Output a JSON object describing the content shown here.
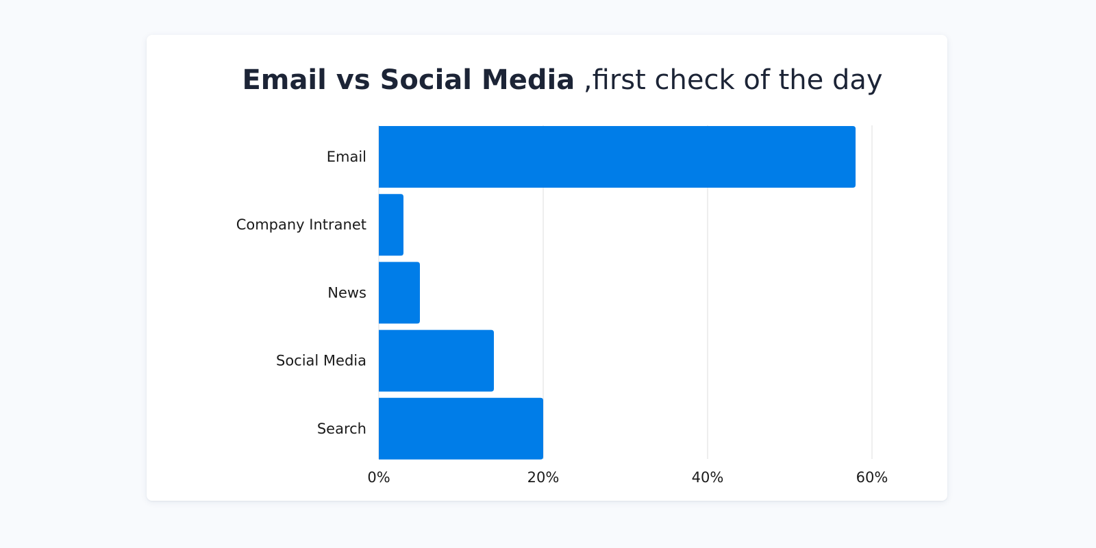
{
  "title": {
    "bold_part": "Email vs Social Media",
    "light_part": ",first check of the day"
  },
  "colors": {
    "bar": "#007de8",
    "grid": "#dcdcdc",
    "text": "#1a1a1a",
    "title": "#1c2436"
  },
  "chart_data": {
    "type": "bar",
    "orientation": "horizontal",
    "title": "Email vs Social Media ,first check of the day",
    "categories": [
      "Email",
      "Company Intranet",
      "News",
      "Social Media",
      "Search"
    ],
    "values": [
      58,
      3,
      5,
      14,
      20
    ],
    "xlim": [
      0,
      60
    ],
    "xticks": [
      0,
      20,
      40,
      60
    ],
    "xtick_labels": [
      "0%",
      "20%",
      "40%",
      "60%"
    ],
    "xlabel": "",
    "ylabel": "",
    "grid": true,
    "legend": "none"
  }
}
